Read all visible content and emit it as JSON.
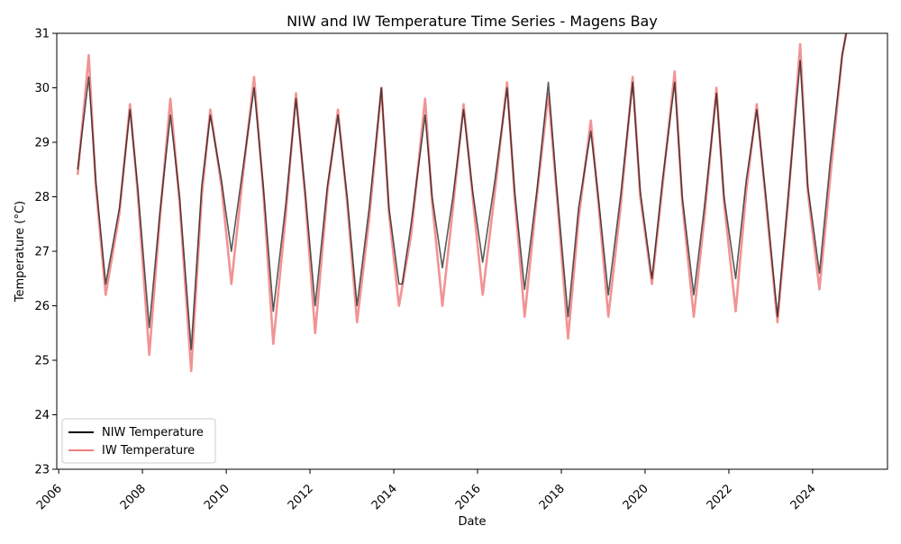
{
  "chart_data": {
    "type": "line",
    "title": "NIW and IW Temperature Time Series - Magens Bay",
    "xlabel": "Date",
    "ylabel": "Temperature (°C)",
    "xlim": [
      "2005-12-15",
      "2025-10-15"
    ],
    "ylim": [
      23,
      31
    ],
    "x_ticks": [
      "2006",
      "2008",
      "2010",
      "2012",
      "2014",
      "2016",
      "2018",
      "2020",
      "2022",
      "2024"
    ],
    "y_ticks": [
      "23",
      "24",
      "25",
      "26",
      "27",
      "28",
      "29",
      "30",
      "31"
    ],
    "grid": false,
    "legend_position": "lower-left",
    "series": [
      {
        "name": "NIW Temperature",
        "color": "#000000",
        "x": [
          "2006-06-15",
          "2006-09-20",
          "2006-11-20",
          "2007-02-15",
          "2007-06-15",
          "2007-09-15",
          "2007-11-20",
          "2008-03-01",
          "2008-06-01",
          "2008-09-01",
          "2008-11-20",
          "2009-03-01",
          "2009-06-01",
          "2009-08-15",
          "2009-11-20",
          "2010-02-15",
          "2010-06-01",
          "2010-09-01",
          "2010-11-20",
          "2011-02-15",
          "2011-06-01",
          "2011-09-01",
          "2011-11-20",
          "2012-02-15",
          "2012-06-01",
          "2012-09-01",
          "2012-11-20",
          "2013-02-15",
          "2013-06-01",
          "2013-09-15",
          "2013-11-20",
          "2014-02-15",
          "2014-03-15",
          "2014-06-01",
          "2014-10-01",
          "2014-12-01",
          "2015-03-01",
          "2015-06-01",
          "2015-09-01",
          "2015-11-20",
          "2016-02-15",
          "2016-06-01",
          "2016-09-15",
          "2016-11-20",
          "2017-02-15",
          "2017-06-01",
          "2017-09-10",
          "2017-11-20",
          "2018-03-01",
          "2018-06-01",
          "2018-09-15",
          "2018-11-20",
          "2019-02-15",
          "2019-06-01",
          "2019-09-15",
          "2019-11-20",
          "2020-03-01",
          "2020-06-01",
          "2020-09-15",
          "2020-11-20",
          "2021-03-01",
          "2021-06-01",
          "2021-09-15",
          "2021-11-20",
          "2022-03-01",
          "2022-06-01",
          "2022-09-01",
          "2022-11-20",
          "2023-03-01",
          "2023-06-01",
          "2023-09-15",
          "2023-11-20",
          "2024-03-01",
          "2024-06-01",
          "2024-09-15",
          "2024-10-20"
        ],
        "y": [
          28.5,
          30.2,
          28.3,
          26.4,
          27.8,
          29.6,
          28.2,
          25.6,
          27.7,
          29.5,
          28.0,
          25.2,
          28.2,
          29.5,
          28.3,
          27.0,
          28.6,
          30.0,
          28.2,
          25.9,
          27.8,
          29.8,
          28.1,
          26.0,
          28.2,
          29.5,
          28.0,
          26.0,
          27.8,
          30.0,
          27.8,
          26.4,
          26.4,
          27.5,
          29.5,
          28.0,
          26.7,
          28.0,
          29.6,
          28.1,
          26.8,
          28.3,
          30.0,
          28.1,
          26.3,
          28.1,
          30.1,
          28.2,
          25.8,
          27.8,
          29.2,
          28.0,
          26.2,
          28.0,
          30.1,
          28.1,
          26.5,
          28.3,
          30.1,
          28.0,
          26.2,
          27.8,
          29.9,
          28.0,
          26.5,
          28.3,
          29.6,
          28.0,
          25.8,
          28.0,
          30.5,
          28.2,
          26.6,
          28.6,
          30.6,
          31.0
        ]
      },
      {
        "name": "IW Temperature",
        "color": "#f08080",
        "x": [
          "2006-06-15",
          "2006-09-20",
          "2006-11-20",
          "2007-02-15",
          "2007-06-15",
          "2007-09-15",
          "2007-11-20",
          "2008-03-01",
          "2008-06-01",
          "2008-09-01",
          "2008-11-20",
          "2009-03-01",
          "2009-06-01",
          "2009-08-15",
          "2009-11-20",
          "2010-02-15",
          "2010-06-01",
          "2010-09-01",
          "2010-11-20",
          "2011-02-15",
          "2011-06-01",
          "2011-09-01",
          "2011-11-20",
          "2012-02-15",
          "2012-06-01",
          "2012-09-01",
          "2012-11-20",
          "2013-02-15",
          "2013-06-01",
          "2013-09-15",
          "2013-11-20",
          "2014-02-15",
          "2014-06-01",
          "2014-10-01",
          "2014-12-01",
          "2015-03-01",
          "2015-06-01",
          "2015-09-01",
          "2015-11-20",
          "2016-02-15",
          "2016-06-01",
          "2016-09-15",
          "2016-11-20",
          "2017-02-15",
          "2017-06-01",
          "2017-09-10",
          "2017-11-20",
          "2018-03-01",
          "2018-06-01",
          "2018-09-15",
          "2018-11-20",
          "2019-02-15",
          "2019-06-01",
          "2019-09-15",
          "2019-11-20",
          "2020-03-01",
          "2020-06-01",
          "2020-09-15",
          "2020-11-20",
          "2021-03-01",
          "2021-06-01",
          "2021-09-15",
          "2021-11-20",
          "2022-03-01",
          "2022-06-01",
          "2022-09-01",
          "2022-11-20",
          "2023-03-01",
          "2023-06-01",
          "2023-09-15",
          "2023-11-20",
          "2024-03-01",
          "2024-06-01",
          "2024-09-15",
          "2024-10-20"
        ],
        "y": [
          28.4,
          30.6,
          28.2,
          26.2,
          27.7,
          29.7,
          28.1,
          25.1,
          27.6,
          29.8,
          27.9,
          24.8,
          28.0,
          29.6,
          28.2,
          26.4,
          28.5,
          30.2,
          28.1,
          25.3,
          27.6,
          29.9,
          28.0,
          25.5,
          28.1,
          29.6,
          27.9,
          25.7,
          27.6,
          30.0,
          27.7,
          26.0,
          27.3,
          29.8,
          27.9,
          26.0,
          27.8,
          29.7,
          28.0,
          26.2,
          28.1,
          30.1,
          28.0,
          25.8,
          28.0,
          29.9,
          28.1,
          25.4,
          27.6,
          29.4,
          27.9,
          25.8,
          27.8,
          30.2,
          28.0,
          26.4,
          28.2,
          30.3,
          27.9,
          25.8,
          27.6,
          30.0,
          27.9,
          25.9,
          28.1,
          29.7,
          27.9,
          25.7,
          27.9,
          30.8,
          28.1,
          26.3,
          28.3,
          30.6,
          31.0
        ]
      }
    ]
  }
}
